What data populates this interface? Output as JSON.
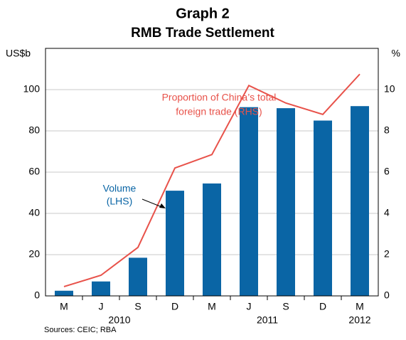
{
  "chart_data": {
    "type": "bar",
    "title": "Graph 2",
    "subtitle": "RMB Trade Settlement",
    "y_label": "US$b",
    "y2_label": "%",
    "categories": [
      "M",
      "J",
      "S",
      "D",
      "M",
      "J",
      "S",
      "D",
      "M"
    ],
    "x_groups": [
      {
        "label": "2010",
        "start": 0,
        "end": 3
      },
      {
        "label": "2011",
        "start": 4,
        "end": 7
      },
      {
        "label": "2012",
        "start": 8,
        "end": 8
      }
    ],
    "series": [
      {
        "name": "Volume (LHS)",
        "type": "bar",
        "color": "#0a65a5",
        "values": [
          2.5,
          7,
          18.5,
          51,
          54.5,
          91.5,
          91,
          85,
          92
        ]
      },
      {
        "name": "Proportion of China's total foreign trade (RHS)",
        "type": "line",
        "axis": "y2",
        "color": "#e8524a",
        "values": [
          0.45,
          1.0,
          2.35,
          6.2,
          6.85,
          10.2,
          9.35,
          8.8,
          10.75
        ]
      }
    ],
    "annotations": [
      {
        "lines": [
          "Proportion of China’s total",
          "foreign trade (RHS)"
        ],
        "color": "#e8524a"
      },
      {
        "lines": [
          "Volume",
          "(LHS)"
        ],
        "color": "#0a65a5"
      }
    ],
    "ylim": [
      0,
      120
    ],
    "yticks": [
      0,
      20,
      40,
      60,
      80,
      100
    ],
    "y2lim": [
      0,
      12
    ],
    "y2ticks": [
      0,
      2,
      4,
      6,
      8,
      10
    ],
    "grid": true,
    "source": "Sources: CEIC; RBA"
  }
}
